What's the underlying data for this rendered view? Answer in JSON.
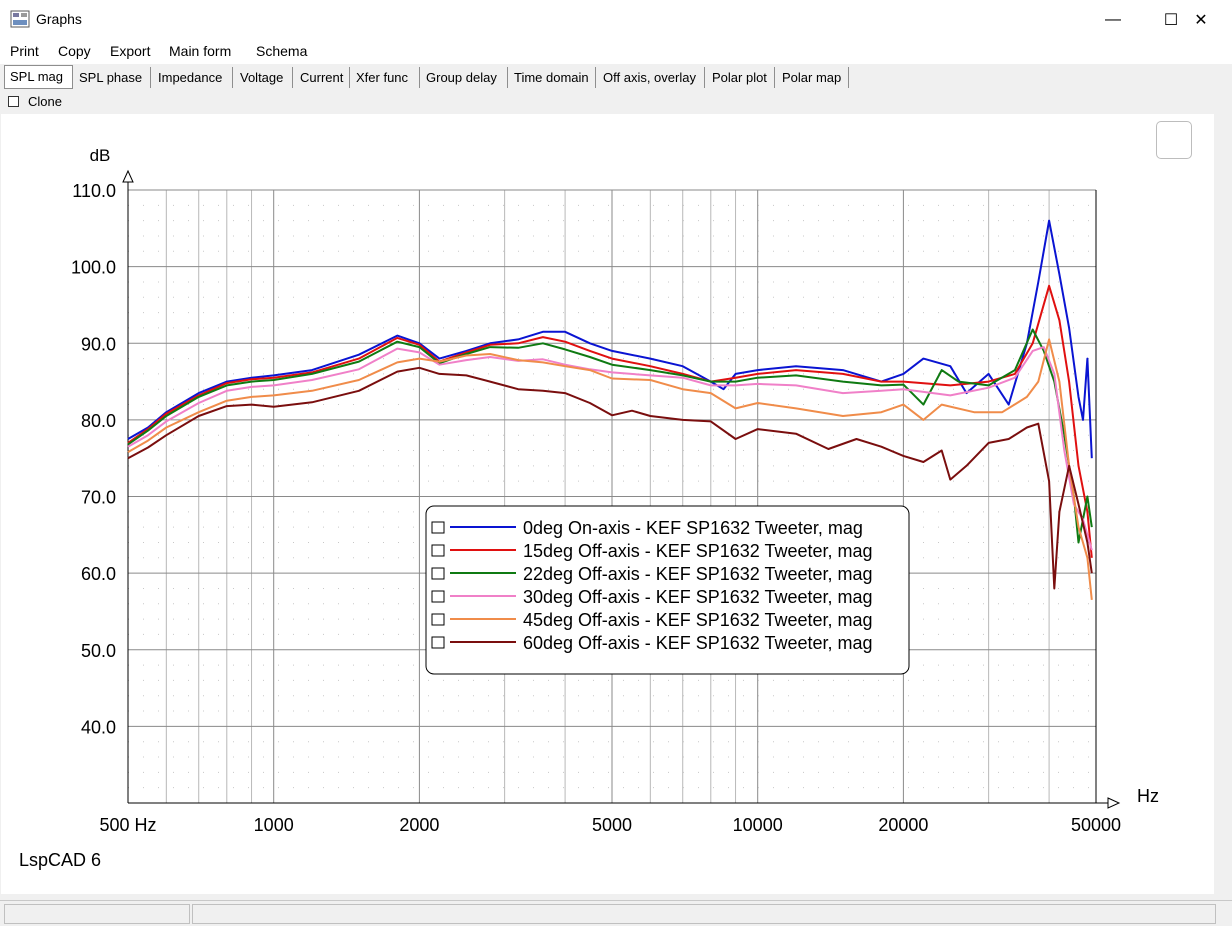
{
  "window": {
    "title": "Graphs",
    "minimize_glyph": "—",
    "maximize_glyph": "☐",
    "close_glyph": "✕",
    "icon": "graph-window-icon"
  },
  "menu": [
    {
      "label": "Print"
    },
    {
      "label": "Copy"
    },
    {
      "label": "Export"
    },
    {
      "label": "Main form"
    },
    {
      "label": "Schema"
    }
  ],
  "tabs": [
    {
      "label": "SPL mag",
      "active": true
    },
    {
      "label": "SPL phase"
    },
    {
      "label": "Impedance"
    },
    {
      "label": "Voltage"
    },
    {
      "label": "Current"
    },
    {
      "label": "Xfer func"
    },
    {
      "label": "Group delay"
    },
    {
      "label": "Time domain"
    },
    {
      "label": "Off axis, overlay"
    },
    {
      "label": "Polar plot"
    },
    {
      "label": "Polar map"
    }
  ],
  "clone": {
    "label": "Clone",
    "checked": false
  },
  "watermark": "LspCAD 6",
  "chart_data": {
    "type": "line",
    "ylabel": "dB",
    "xlabel": "Hz",
    "x_scale": "log",
    "xlim": [
      500,
      50000
    ],
    "ylim": [
      30,
      110
    ],
    "grid": true,
    "legend_position": "center",
    "y_ticks": [
      "110.0",
      "100.0",
      "90.0",
      "80.0",
      "70.0",
      "60.0",
      "50.0",
      "40.0"
    ],
    "x_ticks": [
      {
        "value": 500,
        "label": "500 Hz"
      },
      {
        "value": 1000,
        "label": "1000"
      },
      {
        "value": 2000,
        "label": "2000"
      },
      {
        "value": 5000,
        "label": "5000"
      },
      {
        "value": 10000,
        "label": "10000"
      },
      {
        "value": 20000,
        "label": "20000"
      },
      {
        "value": 50000,
        "label": "50000"
      }
    ],
    "series": [
      {
        "name": "0deg On-axis - KEF SP1632 Tweeter, mag",
        "color": "#0a14d2",
        "points": [
          [
            500,
            77.5
          ],
          [
            550,
            79
          ],
          [
            600,
            81
          ],
          [
            700,
            83.5
          ],
          [
            800,
            85
          ],
          [
            900,
            85.5
          ],
          [
            1000,
            85.8
          ],
          [
            1200,
            86.5
          ],
          [
            1500,
            88.5
          ],
          [
            1800,
            91
          ],
          [
            2000,
            90
          ],
          [
            2200,
            88
          ],
          [
            2500,
            89
          ],
          [
            2800,
            90
          ],
          [
            3200,
            90.5
          ],
          [
            3600,
            91.5
          ],
          [
            4000,
            91.5
          ],
          [
            4500,
            90
          ],
          [
            5000,
            89
          ],
          [
            6000,
            88
          ],
          [
            7000,
            87
          ],
          [
            8000,
            85
          ],
          [
            8500,
            84
          ],
          [
            9000,
            86
          ],
          [
            10000,
            86.5
          ],
          [
            12000,
            87
          ],
          [
            15000,
            86.5
          ],
          [
            18000,
            85
          ],
          [
            20000,
            86
          ],
          [
            22000,
            88
          ],
          [
            25000,
            87
          ],
          [
            27000,
            83.5
          ],
          [
            30000,
            86
          ],
          [
            33000,
            82
          ],
          [
            36000,
            90
          ],
          [
            38000,
            98
          ],
          [
            40000,
            106
          ],
          [
            42000,
            99
          ],
          [
            44000,
            92
          ],
          [
            46000,
            83
          ],
          [
            47000,
            80
          ],
          [
            48000,
            88
          ],
          [
            49000,
            75
          ]
        ]
      },
      {
        "name": "15deg Off-axis - KEF SP1632 Tweeter, mag",
        "color": "#e01010",
        "points": [
          [
            500,
            77
          ],
          [
            550,
            78.8
          ],
          [
            600,
            80.8
          ],
          [
            700,
            83.2
          ],
          [
            800,
            84.8
          ],
          [
            900,
            85.3
          ],
          [
            1000,
            85.5
          ],
          [
            1200,
            86.2
          ],
          [
            1500,
            88
          ],
          [
            1800,
            90.7
          ],
          [
            2000,
            89.8
          ],
          [
            2200,
            87.6
          ],
          [
            2500,
            88.8
          ],
          [
            2800,
            89.8
          ],
          [
            3200,
            90
          ],
          [
            3600,
            90.8
          ],
          [
            4000,
            90.2
          ],
          [
            4500,
            89
          ],
          [
            5000,
            88
          ],
          [
            6000,
            87
          ],
          [
            7000,
            86
          ],
          [
            8000,
            85
          ],
          [
            9000,
            85.5
          ],
          [
            10000,
            86
          ],
          [
            12000,
            86.5
          ],
          [
            15000,
            86
          ],
          [
            18000,
            85
          ],
          [
            20000,
            85
          ],
          [
            25000,
            84.5
          ],
          [
            30000,
            85
          ],
          [
            34000,
            86
          ],
          [
            37000,
            90
          ],
          [
            40000,
            97.5
          ],
          [
            42000,
            93
          ],
          [
            44000,
            85
          ],
          [
            46000,
            74
          ],
          [
            48000,
            68
          ],
          [
            49000,
            62
          ]
        ]
      },
      {
        "name": "22deg Off-axis - KEF SP1632 Tweeter, mag",
        "color": "#0f7a12",
        "points": [
          [
            500,
            76.8
          ],
          [
            550,
            78.6
          ],
          [
            600,
            80.5
          ],
          [
            700,
            83
          ],
          [
            800,
            84.5
          ],
          [
            900,
            85
          ],
          [
            1000,
            85.2
          ],
          [
            1200,
            86
          ],
          [
            1500,
            87.6
          ],
          [
            1800,
            90.2
          ],
          [
            2000,
            89.5
          ],
          [
            2200,
            87.4
          ],
          [
            2500,
            88.6
          ],
          [
            2800,
            89.5
          ],
          [
            3200,
            89.4
          ],
          [
            3600,
            90
          ],
          [
            4000,
            89.2
          ],
          [
            4500,
            88.2
          ],
          [
            5000,
            87.2
          ],
          [
            6000,
            86.5
          ],
          [
            7000,
            85.8
          ],
          [
            8000,
            85
          ],
          [
            9000,
            85
          ],
          [
            10000,
            85.5
          ],
          [
            12000,
            85.8
          ],
          [
            15000,
            85
          ],
          [
            18000,
            84.5
          ],
          [
            20000,
            84.6
          ],
          [
            22000,
            82
          ],
          [
            24000,
            86.5
          ],
          [
            26000,
            85
          ],
          [
            30000,
            84.5
          ],
          [
            34000,
            86.5
          ],
          [
            37000,
            91.8
          ],
          [
            39000,
            89
          ],
          [
            41000,
            85
          ],
          [
            43000,
            78
          ],
          [
            45000,
            70
          ],
          [
            46000,
            64
          ],
          [
            48000,
            70
          ],
          [
            49000,
            66
          ]
        ]
      },
      {
        "name": "30deg Off-axis - KEF SP1632 Tweeter, mag",
        "color": "#f080c8",
        "points": [
          [
            500,
            76.5
          ],
          [
            550,
            78
          ],
          [
            600,
            79.8
          ],
          [
            700,
            82.2
          ],
          [
            800,
            83.8
          ],
          [
            900,
            84.3
          ],
          [
            1000,
            84.5
          ],
          [
            1200,
            85.2
          ],
          [
            1500,
            86.6
          ],
          [
            1800,
            89.3
          ],
          [
            2000,
            88.8
          ],
          [
            2200,
            87.2
          ],
          [
            2500,
            87.8
          ],
          [
            2800,
            88.2
          ],
          [
            3200,
            87.7
          ],
          [
            3600,
            87.9
          ],
          [
            4000,
            87.2
          ],
          [
            4500,
            86.6
          ],
          [
            5000,
            86.2
          ],
          [
            6000,
            85.8
          ],
          [
            7000,
            85.5
          ],
          [
            8000,
            84.5
          ],
          [
            9000,
            84.5
          ],
          [
            10000,
            84.7
          ],
          [
            12000,
            84.5
          ],
          [
            15000,
            83.5
          ],
          [
            18000,
            83.8
          ],
          [
            20000,
            84
          ],
          [
            25000,
            83.2
          ],
          [
            30000,
            84.2
          ],
          [
            34000,
            85.5
          ],
          [
            37000,
            89
          ],
          [
            39000,
            89.5
          ],
          [
            41000,
            86
          ],
          [
            43000,
            76
          ],
          [
            45000,
            69
          ],
          [
            47000,
            67
          ],
          [
            49000,
            63
          ]
        ]
      },
      {
        "name": "45deg Off-axis - KEF SP1632 Tweeter, mag",
        "color": "#f08c4a",
        "points": [
          [
            500,
            75.8
          ],
          [
            550,
            77.3
          ],
          [
            600,
            79
          ],
          [
            700,
            81
          ],
          [
            800,
            82.5
          ],
          [
            900,
            83
          ],
          [
            1000,
            83.2
          ],
          [
            1200,
            83.8
          ],
          [
            1500,
            85.2
          ],
          [
            1800,
            87.5
          ],
          [
            2000,
            88
          ],
          [
            2200,
            87.6
          ],
          [
            2500,
            88.4
          ],
          [
            2800,
            88.6
          ],
          [
            3200,
            87.8
          ],
          [
            3600,
            87.5
          ],
          [
            4000,
            87
          ],
          [
            4500,
            86.5
          ],
          [
            5000,
            85.4
          ],
          [
            6000,
            85.2
          ],
          [
            7000,
            84
          ],
          [
            8000,
            83.5
          ],
          [
            9000,
            81.5
          ],
          [
            10000,
            82.2
          ],
          [
            12000,
            81.5
          ],
          [
            15000,
            80.5
          ],
          [
            18000,
            81
          ],
          [
            20000,
            82
          ],
          [
            22000,
            80
          ],
          [
            24000,
            82
          ],
          [
            28000,
            81
          ],
          [
            32000,
            81
          ],
          [
            36000,
            83
          ],
          [
            38000,
            85
          ],
          [
            40000,
            90.5
          ],
          [
            42000,
            85
          ],
          [
            44000,
            74
          ],
          [
            46000,
            66
          ],
          [
            48000,
            62
          ],
          [
            49000,
            56.5
          ]
        ]
      },
      {
        "name": "60deg Off-axis - KEF SP1632 Tweeter, mag",
        "color": "#7a0e0e",
        "points": [
          [
            500,
            75
          ],
          [
            550,
            76.4
          ],
          [
            600,
            78
          ],
          [
            700,
            80.5
          ],
          [
            800,
            81.8
          ],
          [
            900,
            82
          ],
          [
            1000,
            81.7
          ],
          [
            1200,
            82.3
          ],
          [
            1500,
            83.8
          ],
          [
            1800,
            86.3
          ],
          [
            2000,
            86.8
          ],
          [
            2200,
            86
          ],
          [
            2500,
            85.8
          ],
          [
            2800,
            85
          ],
          [
            3200,
            84
          ],
          [
            3600,
            83.8
          ],
          [
            4000,
            83.5
          ],
          [
            4500,
            82.2
          ],
          [
            5000,
            80.6
          ],
          [
            5500,
            81.2
          ],
          [
            6000,
            80.5
          ],
          [
            7000,
            80
          ],
          [
            8000,
            79.8
          ],
          [
            9000,
            77.5
          ],
          [
            10000,
            78.8
          ],
          [
            12000,
            78.2
          ],
          [
            14000,
            76.2
          ],
          [
            16000,
            77.5
          ],
          [
            18000,
            76.5
          ],
          [
            20000,
            75.3
          ],
          [
            22000,
            74.5
          ],
          [
            24000,
            76
          ],
          [
            25000,
            72.2
          ],
          [
            27000,
            74
          ],
          [
            30000,
            77
          ],
          [
            33000,
            77.5
          ],
          [
            36000,
            79
          ],
          [
            38000,
            79.5
          ],
          [
            40000,
            72
          ],
          [
            41000,
            58
          ],
          [
            42000,
            68
          ],
          [
            44000,
            74
          ],
          [
            46000,
            69
          ],
          [
            48000,
            64
          ],
          [
            49000,
            60
          ]
        ]
      }
    ]
  }
}
